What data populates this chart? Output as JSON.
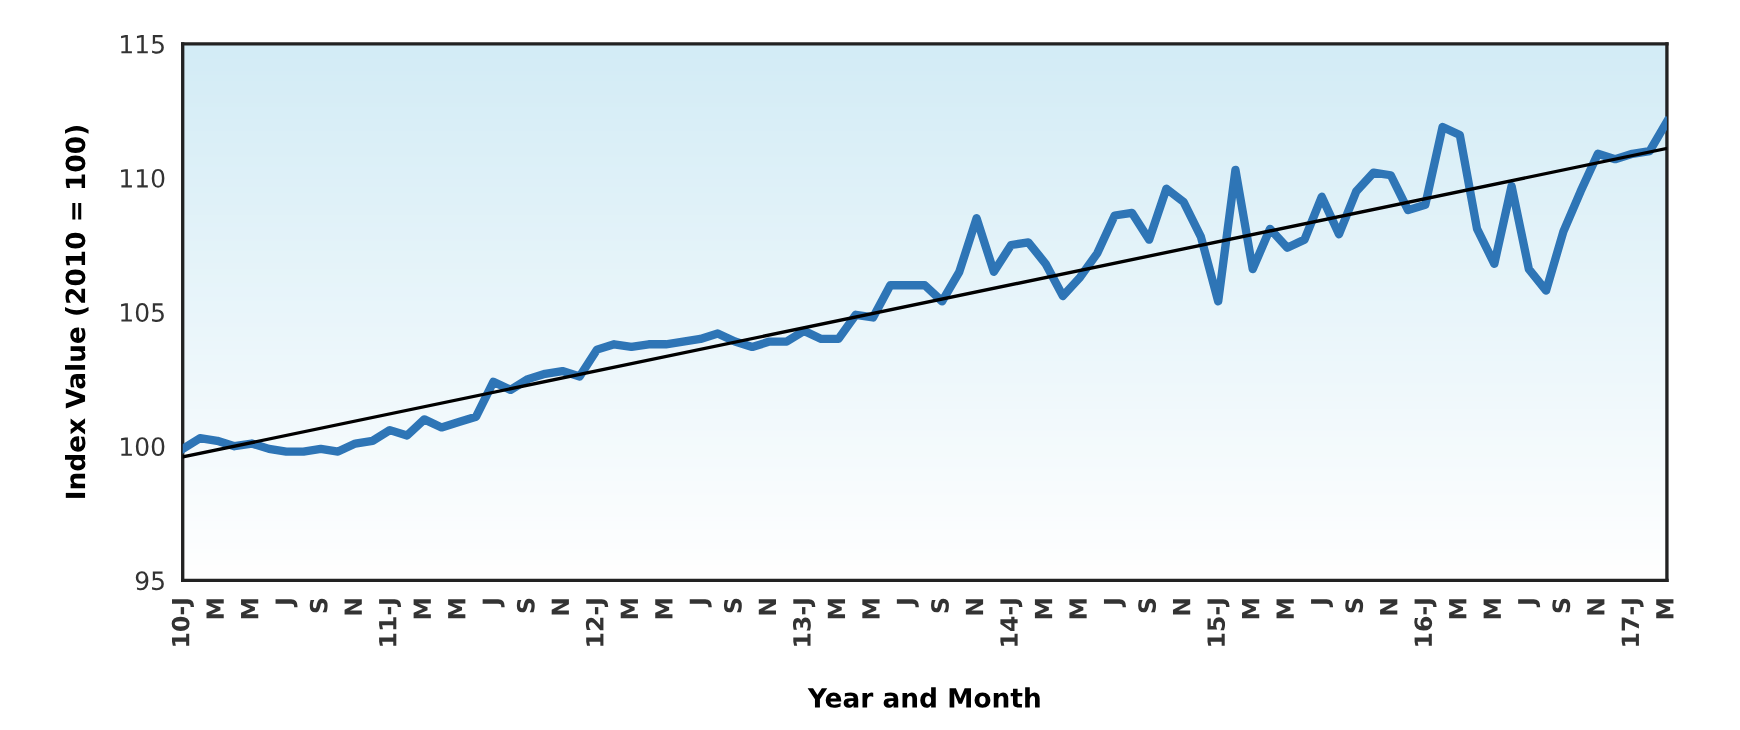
{
  "chart_data": {
    "type": "line",
    "xlabel": "Year and Month",
    "ylabel": "Index Value (2010 = 100)",
    "x": [
      "2010-01",
      "2010-02",
      "2010-03",
      "2010-04",
      "2010-05",
      "2010-06",
      "2010-07",
      "2010-08",
      "2010-09",
      "2010-10",
      "2010-11",
      "2010-12",
      "2011-01",
      "2011-02",
      "2011-03",
      "2011-04",
      "2011-05",
      "2011-06",
      "2011-07",
      "2011-08",
      "2011-09",
      "2011-10",
      "2011-11",
      "2011-12",
      "2012-01",
      "2012-02",
      "2012-03",
      "2012-04",
      "2012-05",
      "2012-06",
      "2012-07",
      "2012-08",
      "2012-09",
      "2012-10",
      "2012-11",
      "2012-12",
      "2013-01",
      "2013-02",
      "2013-03",
      "2013-04",
      "2013-05",
      "2013-06",
      "2013-07",
      "2013-08",
      "2013-09",
      "2013-10",
      "2013-11",
      "2013-12",
      "2014-01",
      "2014-02",
      "2014-03",
      "2014-04",
      "2014-05",
      "2014-06",
      "2014-07",
      "2014-08",
      "2014-09",
      "2014-10",
      "2014-11",
      "2014-12",
      "2015-01",
      "2015-02",
      "2015-03",
      "2015-04",
      "2015-05",
      "2015-06",
      "2015-07",
      "2015-08",
      "2015-09",
      "2015-10",
      "2015-11",
      "2015-12",
      "2016-01",
      "2016-02",
      "2016-03",
      "2016-04",
      "2016-05",
      "2016-06",
      "2016-07",
      "2016-08",
      "2016-09",
      "2016-10",
      "2016-11",
      "2016-12",
      "2017-01",
      "2017-02",
      "2017-03"
    ],
    "series": [
      {
        "color": "#2e75b6",
        "values": [
          99.9,
          100.3,
          100.2,
          100.0,
          100.1,
          99.9,
          99.8,
          99.8,
          99.9,
          99.8,
          100.1,
          100.2,
          100.6,
          100.4,
          101.0,
          100.7,
          100.9,
          101.1,
          102.4,
          102.1,
          102.5,
          102.7,
          102.8,
          102.6,
          103.6,
          103.8,
          103.7,
          103.8,
          103.8,
          103.9,
          104.0,
          104.2,
          103.9,
          103.7,
          103.9,
          103.9,
          104.3,
          104.0,
          104.0,
          104.9,
          104.8,
          106.0,
          106.0,
          106.0,
          105.4,
          106.5,
          108.5,
          106.5,
          107.5,
          107.6,
          106.8,
          105.6,
          106.3,
          107.2,
          108.6,
          108.7,
          107.7,
          109.6,
          109.1,
          107.8,
          105.4,
          110.3,
          106.6,
          108.1,
          107.4,
          107.7,
          109.3,
          107.9,
          109.5,
          110.2,
          110.1,
          108.8,
          109.0,
          111.9,
          111.6,
          108.1,
          106.8,
          109.7,
          106.6,
          105.8,
          108.0,
          109.5,
          110.9,
          110.7,
          110.9,
          111.0,
          112.1
        ]
      },
      {
        "type": "line",
        "color": "#000000",
        "x": [
          "2010-01",
          "2017-03"
        ],
        "values": [
          99.6,
          111.1
        ]
      }
    ],
    "xlim": [
      "2010-01",
      "2017-03"
    ],
    "xticks": [
      {
        "value": "2010-01",
        "label": "10-J"
      },
      {
        "value": "2010-03",
        "label": "M"
      },
      {
        "value": "2010-05",
        "label": "M"
      },
      {
        "value": "2010-07",
        "label": "J"
      },
      {
        "value": "2010-09",
        "label": "S"
      },
      {
        "value": "2010-11",
        "label": "N"
      },
      {
        "value": "2011-01",
        "label": "11-J"
      },
      {
        "value": "2011-03",
        "label": "M"
      },
      {
        "value": "2011-05",
        "label": "M"
      },
      {
        "value": "2011-07",
        "label": "J"
      },
      {
        "value": "2011-09",
        "label": "S"
      },
      {
        "value": "2011-11",
        "label": "N"
      },
      {
        "value": "2012-01",
        "label": "12-J"
      },
      {
        "value": "2012-03",
        "label": "M"
      },
      {
        "value": "2012-05",
        "label": "M"
      },
      {
        "value": "2012-07",
        "label": "J"
      },
      {
        "value": "2012-09",
        "label": "S"
      },
      {
        "value": "2012-11",
        "label": "N"
      },
      {
        "value": "2013-01",
        "label": "13-J"
      },
      {
        "value": "2013-03",
        "label": "M"
      },
      {
        "value": "2013-05",
        "label": "M"
      },
      {
        "value": "2013-07",
        "label": "J"
      },
      {
        "value": "2013-09",
        "label": "S"
      },
      {
        "value": "2013-11",
        "label": "N"
      },
      {
        "value": "2014-01",
        "label": "14-J"
      },
      {
        "value": "2014-03",
        "label": "M"
      },
      {
        "value": "2014-05",
        "label": "M"
      },
      {
        "value": "2014-07",
        "label": "J"
      },
      {
        "value": "2014-09",
        "label": "S"
      },
      {
        "value": "2014-11",
        "label": "N"
      },
      {
        "value": "2015-01",
        "label": "15-J"
      },
      {
        "value": "2015-03",
        "label": "M"
      },
      {
        "value": "2015-05",
        "label": "M"
      },
      {
        "value": "2015-07",
        "label": "J"
      },
      {
        "value": "2015-09",
        "label": "S"
      },
      {
        "value": "2015-11",
        "label": "N"
      },
      {
        "value": "2016-01",
        "label": "16-J"
      },
      {
        "value": "2016-03",
        "label": "M"
      },
      {
        "value": "2016-05",
        "label": "M"
      },
      {
        "value": "2016-07",
        "label": "J"
      },
      {
        "value": "2016-09",
        "label": "S"
      },
      {
        "value": "2016-11",
        "label": "N"
      },
      {
        "value": "2017-01",
        "label": "17-J"
      },
      {
        "value": "2017-03",
        "label": "M"
      }
    ],
    "ylim": [
      95,
      115
    ],
    "yticks": [
      95,
      100,
      105,
      110,
      115
    ],
    "grid": false,
    "marker": "none",
    "line_style": "solid"
  }
}
